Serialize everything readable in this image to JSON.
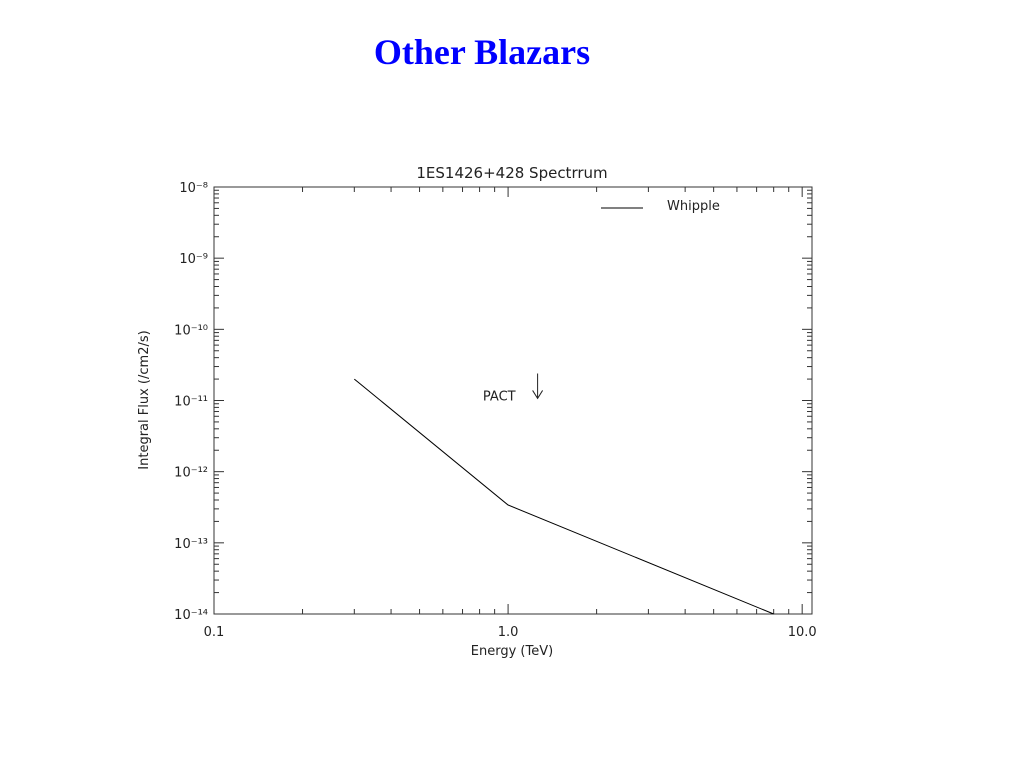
{
  "slide_title": "Other Blazars",
  "chart_data": {
    "type": "line",
    "title": "1ES1426+428 Spectrrum",
    "x_label": "Energy (TeV)",
    "y_label": "Integral Flux (/cm2/s)",
    "xscale": "log",
    "yscale": "log",
    "xlim": [
      0.1,
      10.8
    ],
    "ylim": [
      1e-14,
      1e-08
    ],
    "xticks": [
      0.1,
      {
        "value": 1,
        "label": "1.0"
      },
      {
        "value": 10,
        "label": "10.0"
      }
    ],
    "yticks": [
      {
        "value": 1e-14,
        "label": "10⁻¹⁴"
      },
      {
        "value": 1e-13,
        "label": "10⁻¹³"
      },
      {
        "value": 1e-12,
        "label": "10⁻¹²"
      },
      {
        "value": 1e-11,
        "label": "10⁻¹¹"
      },
      {
        "value": 1e-10,
        "label": "10⁻¹⁰"
      },
      {
        "value": 1e-09,
        "label": "10⁻⁹"
      },
      {
        "value": 1e-08,
        "label": "10⁻⁸"
      }
    ],
    "series": [
      {
        "name": "Whipple",
        "color": "#000000",
        "x": [
          0.3,
          1.0,
          8
        ],
        "values": [
          2e-11,
          3.4e-13,
          1e-14
        ]
      }
    ],
    "legend": "top-right",
    "annotations": [
      {
        "text": "PACT",
        "x": 1.26,
        "y": 2.4e-11
      }
    ]
  }
}
